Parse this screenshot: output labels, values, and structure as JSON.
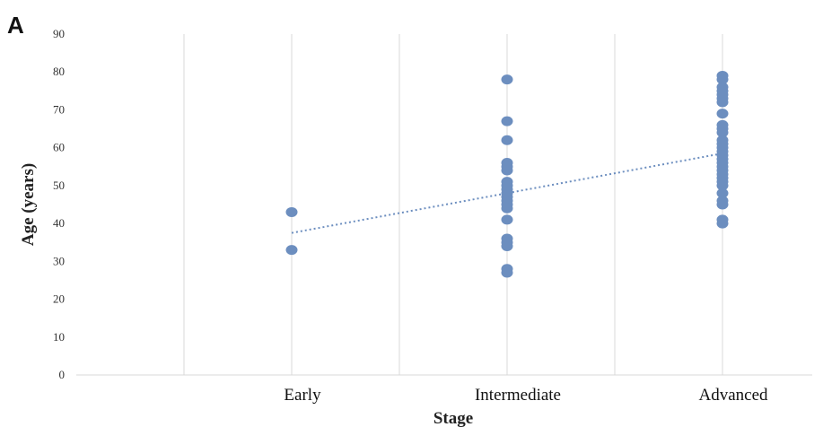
{
  "chart_data": {
    "type": "scatter",
    "panel_label": "A",
    "xlabel": "Stage",
    "ylabel": "Age (years)",
    "categories": [
      "Early",
      "Intermediate",
      "Advanced"
    ],
    "ylim": [
      0,
      90
    ],
    "yticks": [
      0,
      10,
      20,
      30,
      40,
      50,
      60,
      70,
      80,
      90
    ],
    "grid": "vertical",
    "marker_color": "#6c8ebf",
    "trendline_color": "#6c8ebf",
    "points": [
      {
        "category": "Early",
        "values": [
          43,
          33
        ]
      },
      {
        "category": "Intermediate",
        "values": [
          78,
          67,
          62,
          56,
          55,
          54,
          51,
          50,
          49,
          48,
          47,
          46,
          45,
          44,
          41,
          36,
          35,
          34,
          28,
          27
        ]
      },
      {
        "category": "Advanced",
        "values": [
          79,
          78,
          76,
          75,
          74,
          73,
          72,
          69,
          66,
          65,
          64,
          62,
          61,
          60,
          59,
          58,
          57,
          56,
          55,
          54,
          53,
          52,
          51,
          50,
          48,
          46,
          45,
          41,
          40
        ]
      }
    ],
    "trendline": {
      "style": "dotted",
      "values": [
        37.5,
        48,
        58.5
      ]
    }
  }
}
